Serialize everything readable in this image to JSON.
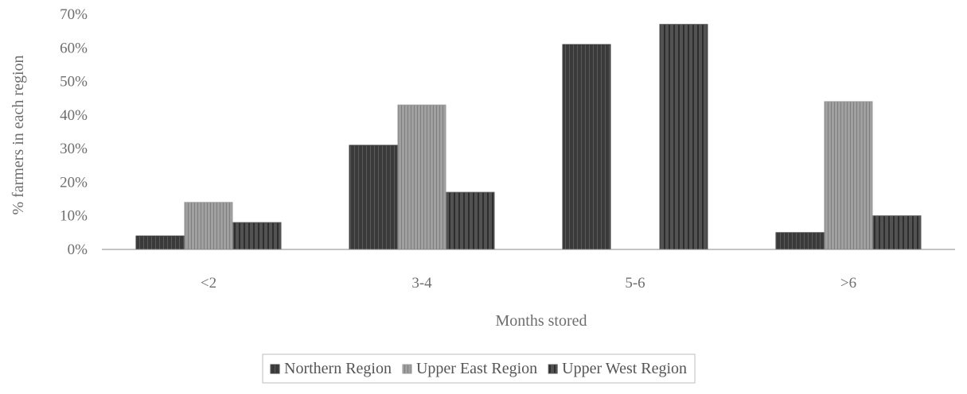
{
  "chart_data": {
    "type": "bar",
    "title": "",
    "xlabel": "Months stored",
    "ylabel": "% farmers in each region",
    "categories": [
      "<2",
      "3-4",
      "5-6",
      ">6"
    ],
    "series": [
      {
        "name": "Northern Region",
        "values": [
          4,
          31,
          61,
          5
        ],
        "color": "#3f3f3f"
      },
      {
        "name": "Upper East Region",
        "values": [
          14,
          43,
          0,
          44
        ],
        "color": "#9a9a9a"
      },
      {
        "name": "Upper West Region",
        "values": [
          8,
          17,
          67,
          10
        ],
        "color": "#575757"
      }
    ],
    "ylim": [
      0,
      70
    ],
    "yticks": [
      0,
      10,
      20,
      30,
      40,
      50,
      60,
      70
    ],
    "ytick_format": "{v}%",
    "grid": false,
    "legend": "bottom"
  }
}
